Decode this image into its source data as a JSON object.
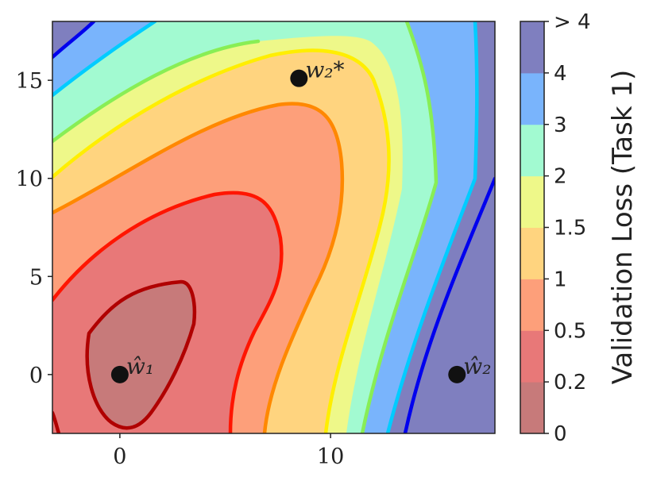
{
  "chart_data": {
    "type": "contour",
    "title": "",
    "xlabel": "",
    "ylabel": "",
    "xlim": [
      -3.2,
      17.8
    ],
    "ylim": [
      -3,
      18
    ],
    "x_ticks": [
      0,
      10
    ],
    "y_ticks": [
      0,
      5,
      10,
      15
    ],
    "grid": false,
    "colorbar": {
      "label": "Validation Loss (Task 1)",
      "levels": [
        "0",
        "0.2",
        "0.5",
        "1",
        "1.5",
        "2",
        "3",
        "4",
        "> 4"
      ],
      "colors": [
        "#c77a7a",
        "#e87878",
        "#fd9f7a",
        "#ffd47f",
        "#eef889",
        "#a2fad1",
        "#79b4fc",
        "#7f7fbf"
      ]
    },
    "points": [
      {
        "label": "ŵ₁",
        "x": 0,
        "y": 0
      },
      {
        "label": "w₂*",
        "x": 8.5,
        "y": 15.1
      },
      {
        "label": "ŵ₂",
        "x": 16,
        "y": 0
      }
    ]
  }
}
